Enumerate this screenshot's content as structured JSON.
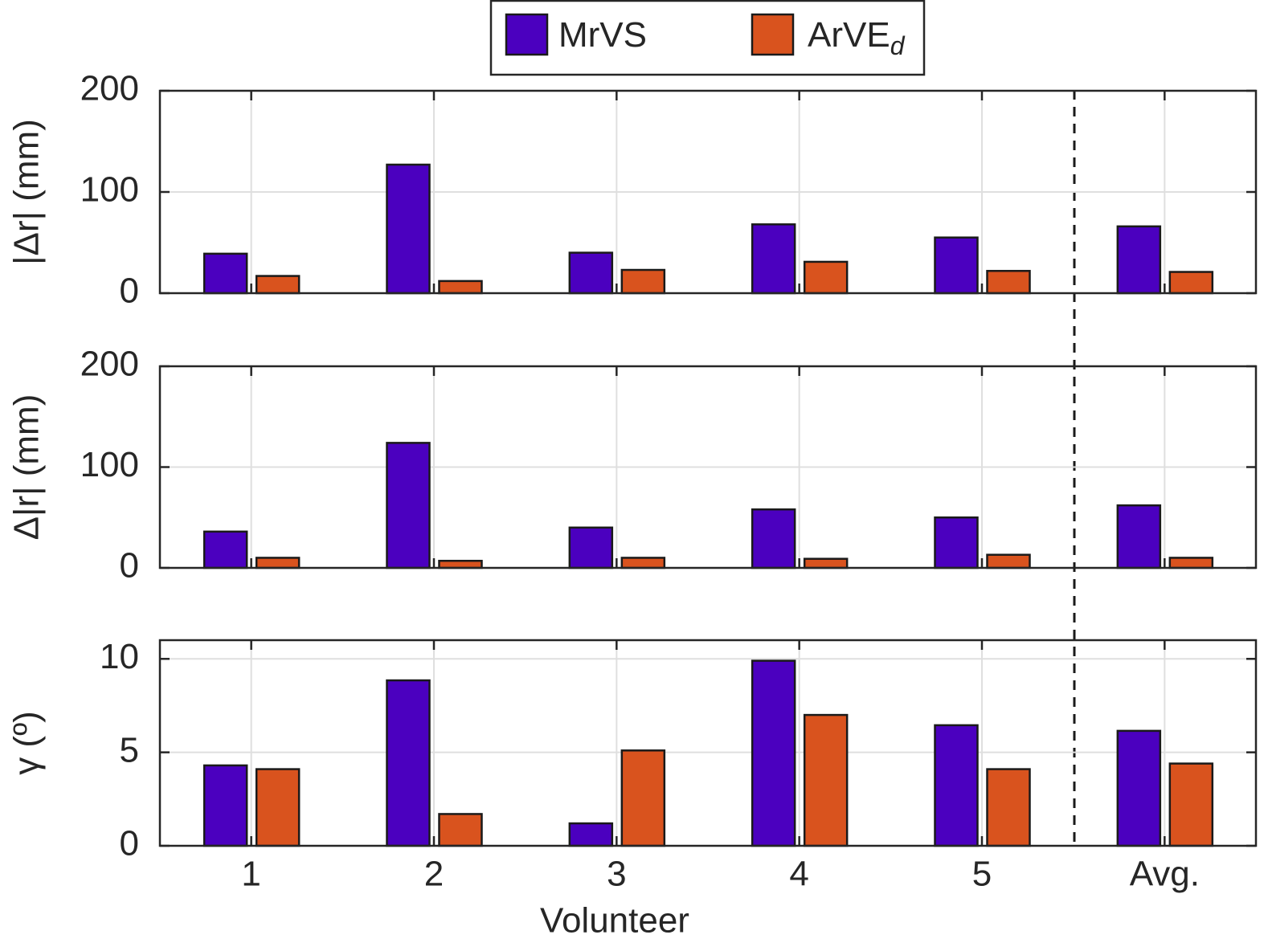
{
  "chart_data": [
    {
      "type": "bar",
      "ylabel": "|Δr| (mm)",
      "ylim": [
        0,
        200
      ],
      "yticks": [
        0,
        100,
        200
      ],
      "grid": true,
      "series": [
        {
          "name": "MrVS",
          "color": "#4b00bf",
          "values": [
            39,
            127,
            40,
            68,
            55,
            66
          ]
        },
        {
          "name": "ArVE",
          "name_subscript": "d",
          "color": "#d9531e",
          "values": [
            17,
            12,
            23,
            31,
            22,
            21
          ]
        }
      ]
    },
    {
      "type": "bar",
      "ylabel": "Δ|r| (mm)",
      "ylim": [
        0,
        200
      ],
      "yticks": [
        0,
        100,
        200
      ],
      "grid": true,
      "series": [
        {
          "color": "#4b00bf",
          "values": [
            36,
            124,
            40,
            58,
            50,
            62
          ]
        },
        {
          "color": "#d9531e",
          "values": [
            10,
            7,
            10,
            9,
            13,
            10
          ]
        }
      ]
    },
    {
      "type": "bar",
      "ylabel": "γ (º)",
      "xlabel": "Volunteer",
      "ylim": [
        0,
        11
      ],
      "yticks": [
        0,
        5,
        10
      ],
      "grid": true,
      "categories": [
        "1",
        "2",
        "3",
        "4",
        "5",
        "Avg."
      ],
      "series": [
        {
          "color": "#4b00bf",
          "values": [
            4.3,
            8.85,
            1.2,
            9.9,
            6.45,
            6.15
          ]
        },
        {
          "color": "#d9531e",
          "values": [
            4.1,
            1.7,
            5.1,
            7.0,
            4.1,
            4.4
          ]
        }
      ]
    }
  ]
}
